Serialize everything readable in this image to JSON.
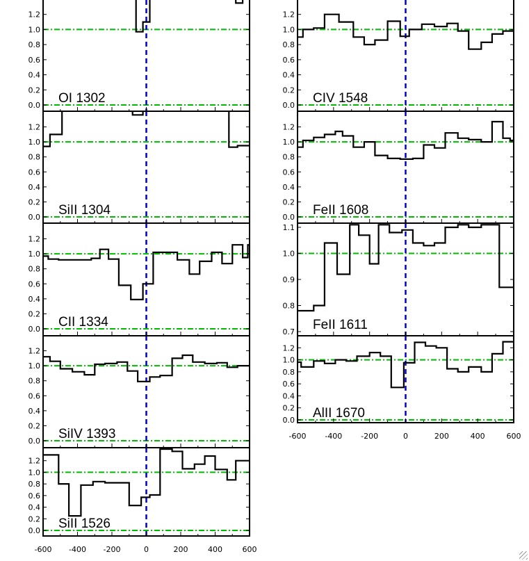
{
  "colors": {
    "spectrum": "#000000",
    "zero_line": "#0000cc",
    "continuum": "#00bb00"
  },
  "chart_data": [
    {
      "type": "step",
      "label": "OI 1302",
      "yticks": [
        "0.0",
        "0.2",
        "0.4",
        "0.6",
        "0.8",
        "1.0",
        "1.2"
      ],
      "ylim": [
        0,
        1.4
      ],
      "xlim": [
        -600,
        600
      ],
      "xticks": [],
      "x": [
        -100,
        -60,
        -20,
        20,
        480,
        520,
        560
      ],
      "y": [
        2.0,
        0.97,
        1.1,
        1.6,
        1.6,
        1.35,
        1.6
      ]
    },
    {
      "type": "step",
      "label": "CIV 1548",
      "yticks": [
        "0.0",
        "0.2",
        "0.4",
        "0.6",
        "0.8",
        "1.0",
        "1.2"
      ],
      "ylim": [
        0,
        1.4
      ],
      "xlim": [
        -600,
        600
      ],
      "xticks": [],
      "x": [
        -600,
        -570,
        -510,
        -450,
        -370,
        -290,
        -230,
        -170,
        -100,
        -30,
        20,
        90,
        160,
        230,
        290,
        350,
        420,
        480,
        540,
        580
      ],
      "y": [
        0.9,
        1.0,
        1.02,
        1.2,
        1.1,
        0.9,
        0.8,
        0.86,
        1.11,
        0.91,
        1.0,
        1.07,
        1.04,
        1.08,
        0.98,
        0.74,
        0.83,
        0.94,
        0.98,
        0.98
      ]
    },
    {
      "type": "step",
      "label": "SiII 1304",
      "yticks": [
        "0.0",
        "0.2",
        "0.4",
        "0.6",
        "0.8",
        "1.0",
        "1.2"
      ],
      "ylim": [
        0,
        1.4
      ],
      "xlim": [
        -600,
        600
      ],
      "xticks": [],
      "x": [
        -600,
        -590,
        -560,
        -490,
        -80,
        -20,
        20,
        480,
        530,
        580
      ],
      "y": [
        0.94,
        0.94,
        1.1,
        1.6,
        1.36,
        1.6,
        1.6,
        0.93,
        0.95,
        0.95
      ]
    },
    {
      "type": "step",
      "label": "FeII 1608",
      "yticks": [
        "0.0",
        "0.2",
        "0.4",
        "0.6",
        "0.8",
        "1.0",
        "1.2"
      ],
      "ylim": [
        0,
        1.4
      ],
      "xlim": [
        -600,
        600
      ],
      "xticks": [],
      "x": [
        -600,
        -570,
        -510,
        -450,
        -390,
        -350,
        -290,
        -230,
        -170,
        -100,
        -30,
        40,
        100,
        160,
        220,
        290,
        350,
        420,
        480,
        540,
        580
      ],
      "y": [
        0.93,
        1.02,
        1.06,
        1.1,
        1.14,
        1.08,
        0.93,
        1.0,
        0.82,
        0.78,
        0.77,
        0.78,
        0.96,
        0.92,
        1.12,
        1.05,
        1.03,
        1.0,
        1.27,
        1.05,
        1.02
      ]
    },
    {
      "type": "step",
      "label": "CII 1334",
      "yticks": [
        "0.0",
        "0.2",
        "0.4",
        "0.6",
        "0.8",
        "1.0",
        "1.2"
      ],
      "ylim": [
        0,
        1.4
      ],
      "xlim": [
        -600,
        600
      ],
      "xticks": [],
      "x": [
        -600,
        -570,
        -510,
        -450,
        -390,
        -320,
        -270,
        -220,
        -160,
        -90,
        -20,
        40,
        110,
        180,
        250,
        310,
        380,
        440,
        500,
        560,
        590
      ],
      "y": [
        0.97,
        0.93,
        0.92,
        0.92,
        0.92,
        0.94,
        1.06,
        0.93,
        0.58,
        0.39,
        0.6,
        1.02,
        1.02,
        0.92,
        0.73,
        0.9,
        1.02,
        0.87,
        1.12,
        0.95,
        1.12
      ]
    },
    {
      "type": "step",
      "label": "FeII 1611",
      "yticks": [
        "0.7",
        "0.8",
        "0.9",
        "1.0",
        "1.1"
      ],
      "ylim": [
        0.7,
        1.1
      ],
      "xlim": [
        -600,
        600
      ],
      "xticks": [],
      "x": [
        -600,
        -510,
        -450,
        -380,
        -310,
        -260,
        -200,
        -150,
        -90,
        -20,
        40,
        100,
        160,
        220,
        290,
        350,
        420,
        480,
        520,
        560
      ],
      "y": [
        0.78,
        0.8,
        1.04,
        0.92,
        1.11,
        1.07,
        0.96,
        1.11,
        1.08,
        1.09,
        1.04,
        1.03,
        1.04,
        1.1,
        1.11,
        1.1,
        1.11,
        1.11,
        0.87,
        0.87
      ]
    },
    {
      "type": "step",
      "label": "SiIV 1393",
      "yticks": [
        "0.0",
        "0.2",
        "0.4",
        "0.6",
        "0.8",
        "1.0",
        "1.2"
      ],
      "ylim": [
        0,
        1.4
      ],
      "xlim": [
        -600,
        600
      ],
      "xticks": [],
      "x": [
        -600,
        -560,
        -500,
        -430,
        -360,
        -300,
        -240,
        -170,
        -110,
        -50,
        20,
        80,
        150,
        210,
        270,
        340,
        410,
        470,
        530,
        580
      ],
      "y": [
        1.12,
        1.06,
        0.96,
        0.92,
        0.88,
        1.02,
        1.03,
        1.05,
        0.93,
        0.79,
        0.85,
        0.87,
        1.1,
        1.14,
        1.05,
        1.03,
        1.04,
        0.98,
        1.0,
        1.0
      ]
    },
    {
      "type": "step",
      "label": "AlII 1670",
      "yticks": [
        "0.0",
        "0.2",
        "0.4",
        "0.6",
        "0.8",
        "1.0",
        "1.2"
      ],
      "ylim": [
        0,
        1.4
      ],
      "xlim": [
        -600,
        600
      ],
      "xticks": [
        "-600",
        "-400",
        "-200",
        "0",
        "200",
        "400",
        "600"
      ],
      "x": [
        -600,
        -580,
        -510,
        -450,
        -390,
        -330,
        -270,
        -200,
        -140,
        -80,
        -10,
        50,
        110,
        170,
        230,
        290,
        350,
        420,
        480,
        540,
        580
      ],
      "y": [
        0.96,
        0.88,
        0.98,
        0.94,
        1.0,
        0.98,
        1.06,
        1.12,
        1.06,
        0.54,
        0.95,
        1.29,
        1.23,
        1.2,
        0.85,
        0.8,
        0.88,
        0.8,
        1.1,
        1.3,
        1.3
      ]
    },
    {
      "type": "step",
      "label": "SiII 1526",
      "yticks": [
        "0.0",
        "0.2",
        "0.4",
        "0.6",
        "0.8",
        "1.0",
        "1.2"
      ],
      "ylim": [
        0,
        1.4
      ],
      "xlim": [
        -600,
        600
      ],
      "xticks": [
        "-600",
        "-400",
        "-200",
        "0",
        "200",
        "400",
        "600"
      ],
      "x": [
        -600,
        -560,
        -510,
        -450,
        -380,
        -310,
        -240,
        -170,
        -100,
        -30,
        20,
        80,
        150,
        210,
        280,
        340,
        400,
        470,
        520,
        580
      ],
      "y": [
        1.3,
        1.3,
        0.8,
        0.25,
        0.78,
        0.84,
        0.82,
        0.82,
        0.43,
        0.57,
        0.61,
        1.4,
        1.36,
        1.06,
        1.14,
        1.28,
        1.05,
        0.87,
        1.2,
        1.2
      ]
    }
  ]
}
